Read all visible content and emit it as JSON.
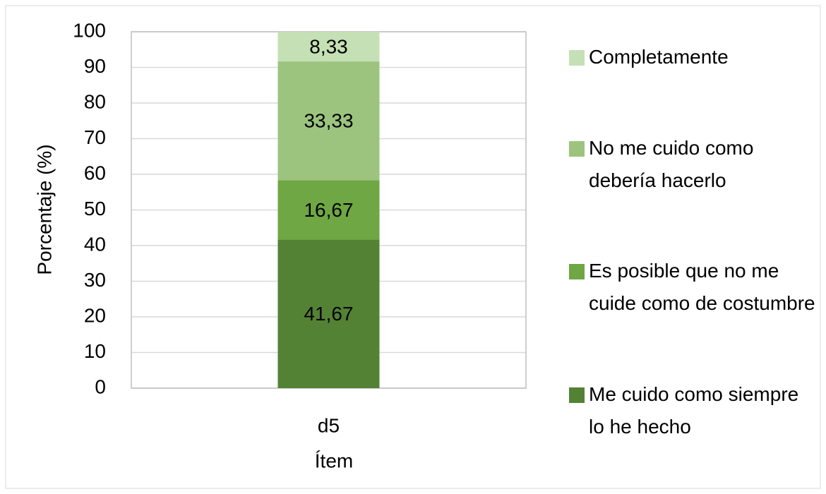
{
  "chart_data": {
    "type": "stacked_bar",
    "categories": [
      "d5"
    ],
    "series": [
      {
        "name": "Me cuido como siempre lo he hecho",
        "color": "#548235",
        "values": [
          41.67
        ],
        "value_labels": [
          "41,67"
        ]
      },
      {
        "name": "Es posible que no me cuide como de costumbre",
        "color": "#6ea743",
        "values": [
          16.67
        ],
        "value_labels": [
          "16,67"
        ]
      },
      {
        "name": "No me cuido como debería hacerlo",
        "color": "#9cc47f",
        "values": [
          33.33
        ],
        "value_labels": [
          "33,33"
        ]
      },
      {
        "name": "Completamente",
        "color": "#c5e0b4",
        "values": [
          8.33
        ],
        "value_labels": [
          "8,33"
        ]
      }
    ],
    "xlabel": "Ítem",
    "ylabel": "Porcentaje (%)",
    "ylim": [
      0,
      100
    ],
    "yticks": [
      0,
      10,
      20,
      30,
      40,
      50,
      60,
      70,
      80,
      90,
      100
    ],
    "grid": true,
    "legend": "right"
  }
}
